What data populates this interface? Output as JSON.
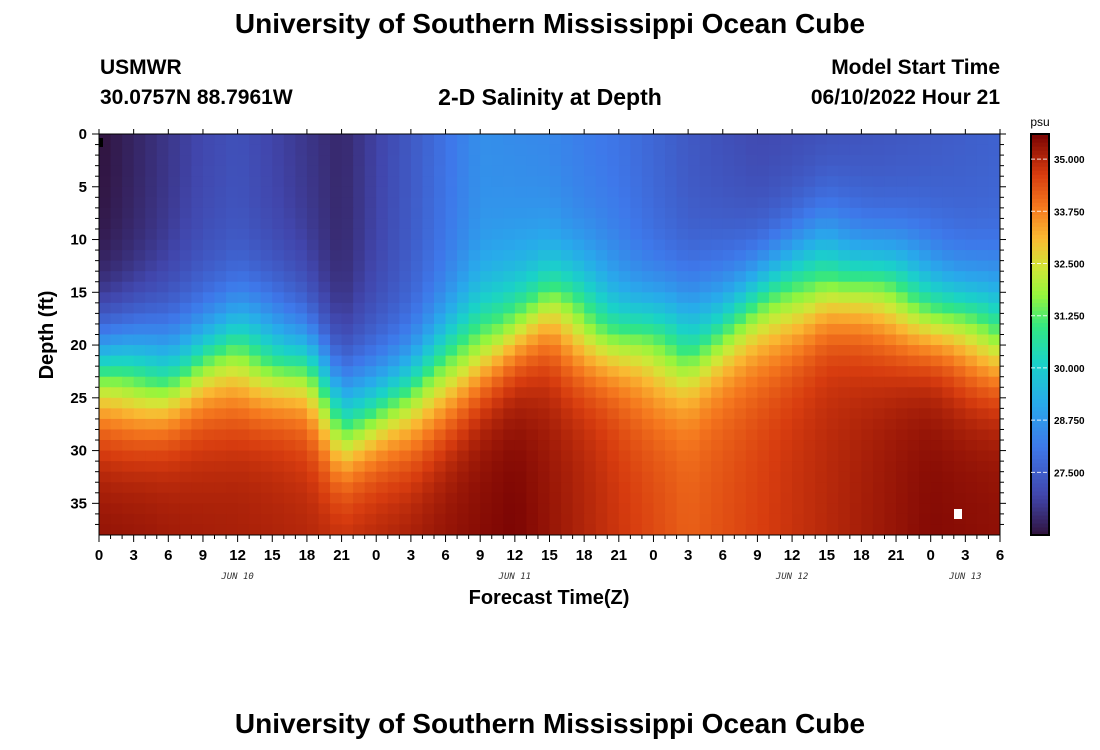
{
  "header": {
    "title": "University of Southern Mississippi Ocean Cube",
    "station": "USMWR",
    "coords": "30.0757N  88.7961W",
    "subtitle": "2-D Salinity at Depth",
    "model_start_label": "Model Start Time",
    "model_start_value": "06/10/2022 Hour 21"
  },
  "footer": {
    "title": "University of Southern Mississippi Ocean Cube"
  },
  "chart_data": {
    "type": "heatmap",
    "title": "2-D Salinity at Depth",
    "xlabel": "Forecast Time(Z)",
    "ylabel": "Depth (ft)",
    "x_range_hours": [
      0,
      78
    ],
    "y_range_ft": [
      0,
      38
    ],
    "x_tick_labels": [
      "0",
      "3",
      "6",
      "9",
      "12",
      "15",
      "18",
      "21",
      "0",
      "3",
      "6",
      "9",
      "12",
      "15",
      "18",
      "21",
      "0",
      "3",
      "6",
      "9",
      "12",
      "15",
      "18",
      "21",
      "0",
      "3",
      "6"
    ],
    "y_tick_labels": [
      "0",
      "5",
      "10",
      "15",
      "20",
      "25",
      "30",
      "35"
    ],
    "y_tick_values": [
      0,
      5,
      10,
      15,
      20,
      25,
      30,
      35
    ],
    "date_labels": [
      {
        "label": "JUN 10",
        "hour": 12
      },
      {
        "label": "JUN 11",
        "hour": 36
      },
      {
        "label": "JUN 12",
        "hour": 60
      },
      {
        "label": "JUN 13",
        "hour": 75
      }
    ],
    "colorbar": {
      "unit": "psu",
      "min": 26.0,
      "max": 35.6,
      "ticks": [
        "35.000",
        "33.750",
        "32.500",
        "31.250",
        "30.000",
        "28.750",
        "27.500"
      ],
      "tick_values": [
        35.0,
        33.75,
        32.5,
        31.25,
        30.0,
        28.75,
        27.5
      ]
    },
    "halocline_depth_ft": [
      {
        "hour": 0,
        "depth": 22.5
      },
      {
        "hour": 6,
        "depth": 23
      },
      {
        "hour": 9,
        "depth": 21.5
      },
      {
        "hour": 12,
        "depth": 20.5
      },
      {
        "hour": 18,
        "depth": 22
      },
      {
        "hour": 21,
        "depth": 27
      },
      {
        "hour": 27,
        "depth": 25
      },
      {
        "hour": 33,
        "depth": 20
      },
      {
        "hour": 39,
        "depth": 16
      },
      {
        "hour": 45,
        "depth": 19
      },
      {
        "hour": 51,
        "depth": 20
      },
      {
        "hour": 57,
        "depth": 16
      },
      {
        "hour": 63,
        "depth": 13
      },
      {
        "hour": 69,
        "depth": 15
      },
      {
        "hour": 75,
        "depth": 18
      },
      {
        "hour": 78,
        "depth": 19
      }
    ],
    "surface_salinity_psu": [
      {
        "hour": 0,
        "value": 26.0
      },
      {
        "hour": 9,
        "value": 27.0
      },
      {
        "hour": 12,
        "value": 27.2
      },
      {
        "hour": 21,
        "value": 26.4
      },
      {
        "hour": 27,
        "value": 27.4
      },
      {
        "hour": 33,
        "value": 28.6
      },
      {
        "hour": 39,
        "value": 28.4
      },
      {
        "hour": 45,
        "value": 28.0
      },
      {
        "hour": 51,
        "value": 27.4
      },
      {
        "hour": 57,
        "value": 27.0
      },
      {
        "hour": 66,
        "value": 27.2
      },
      {
        "hour": 78,
        "value": 27.6
      }
    ],
    "bottom_salinity_psu": [
      {
        "hour": 0,
        "value": 35.4
      },
      {
        "hour": 9,
        "value": 35.2
      },
      {
        "hour": 21,
        "value": 35.0
      },
      {
        "hour": 36,
        "value": 35.6
      },
      {
        "hour": 51,
        "value": 34.2
      },
      {
        "hour": 60,
        "value": 34.8
      },
      {
        "hour": 72,
        "value": 35.5
      },
      {
        "hour": 78,
        "value": 35.4
      }
    ]
  }
}
